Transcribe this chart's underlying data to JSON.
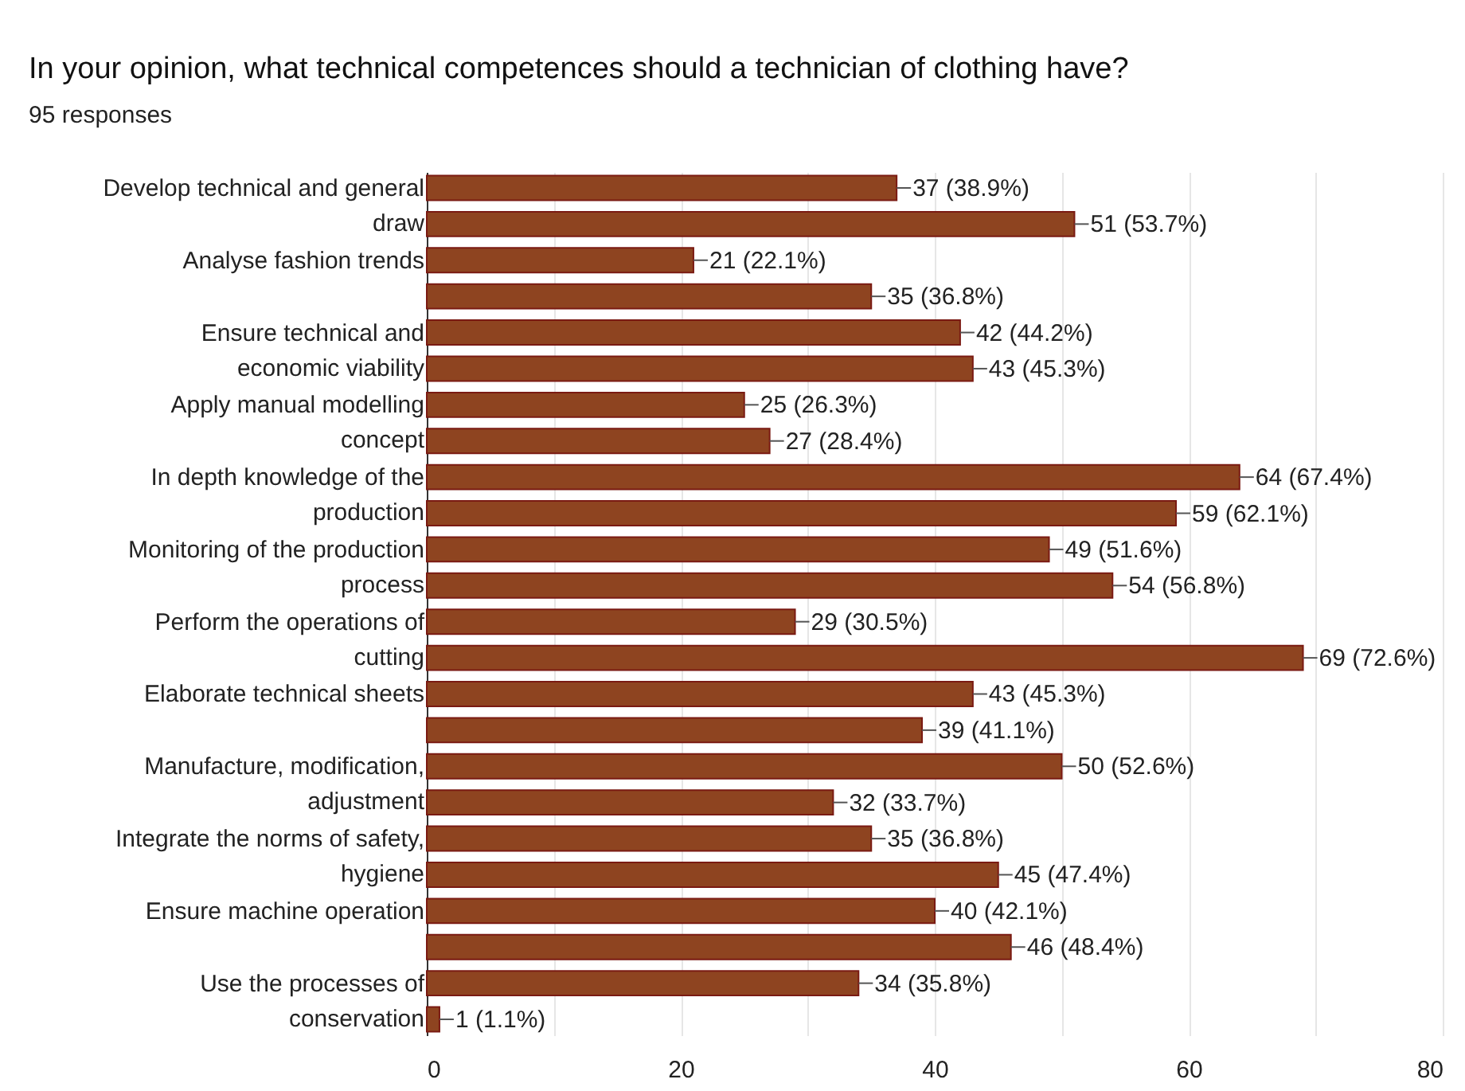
{
  "chart_data": {
    "type": "bar",
    "orientation": "horizontal",
    "title": "In your opinion, what technical competences should a technician of clothing have?",
    "subtitle": "95 responses",
    "categories": [
      "Develop technical and general\ndraw",
      null,
      "Analyse fashion trends",
      null,
      "Ensure technical and\neconomic viability",
      null,
      "Apply manual modelling\nconcept",
      null,
      "In depth knowledge of the\nproduction",
      null,
      "Monitoring of the production\nprocess",
      null,
      "Perform the operations of\ncutting",
      null,
      "Elaborate technical sheets",
      null,
      "Manufacture, modification,\nadjustment",
      null,
      "Integrate the norms of safety,\nhygiene",
      null,
      "Ensure machine operation",
      null,
      "Use the processes of\nconservation",
      null
    ],
    "values": [
      37,
      51,
      21,
      35,
      42,
      43,
      25,
      27,
      64,
      59,
      49,
      54,
      29,
      69,
      43,
      39,
      50,
      32,
      35,
      45,
      40,
      46,
      34,
      1
    ],
    "value_labels": [
      "37 (38.9%)",
      "51 (53.7%)",
      "21 (22.1%)",
      "35 (36.8%)",
      "42 (44.2%)",
      "43 (45.3%)",
      "25 (26.3%)",
      "27 (28.4%)",
      "64 (67.4%)",
      "59 (62.1%)",
      "49 (51.6%)",
      "54 (56.8%)",
      "29 (30.5%)",
      "69 (72.6%)",
      "43 (45.3%)",
      "39 (41.1%)",
      "50 (52.6%)",
      "32 (33.7%)",
      "35 (36.8%)",
      "45 (47.4%)",
      "40 (42.1%)",
      "46 (48.4%)",
      "34 (35.8%)",
      "1 (1.1%)"
    ],
    "color": "#8e4420",
    "xlim": [
      0,
      80
    ],
    "xticks": [
      0,
      {
        "value": 10,
        "label": null
      },
      20,
      {
        "value": 30,
        "label": null
      },
      40,
      {
        "value": 50,
        "label": null
      },
      60,
      {
        "value": 70,
        "label": null
      },
      80
    ],
    "grid": "x"
  }
}
